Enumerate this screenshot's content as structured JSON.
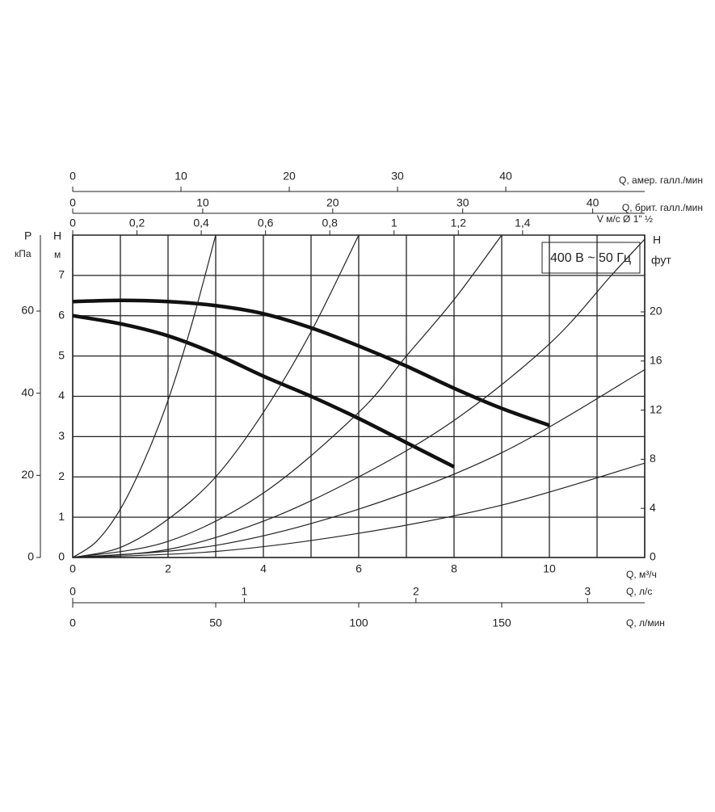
{
  "chart_data": {
    "type": "line",
    "annotation": "400 В ~ 50 Гц",
    "x_label": "Q, м³/ч",
    "y_label": "H",
    "y_unit": "м",
    "y2_label": "H",
    "y2_unit": "фут",
    "xlim": [
      0,
      12
    ],
    "xticks": [
      0,
      2,
      4,
      6,
      8,
      10
    ],
    "xgrid": [
      0,
      1,
      2,
      3,
      4,
      5,
      6,
      7,
      8,
      9,
      10,
      11,
      12
    ],
    "ylim": [
      0,
      8
    ],
    "yticks": [
      0,
      1,
      2,
      3,
      4,
      5,
      6,
      7
    ],
    "y2lim": [
      0,
      26.25
    ],
    "y2ticks": [
      0,
      4,
      8,
      12,
      16,
      20
    ],
    "grid": true,
    "extra_y_axes": [
      {
        "label": "P",
        "unit": "кПа",
        "lim": [
          0,
          78.5
        ],
        "ticks": [
          0,
          20,
          40,
          60
        ]
      }
    ],
    "extra_x_axes": [
      {
        "label": "Q, амер. галл./мин",
        "lim": [
          0,
          52.83
        ],
        "ticks": [
          0,
          10,
          20,
          30,
          40
        ]
      },
      {
        "label": "Q, брит. галл./мин",
        "lim": [
          0,
          44
        ],
        "ticks": [
          0,
          10,
          20,
          30,
          40
        ]
      },
      {
        "label": "V м/с Ø 1\" ½",
        "lim": [
          0,
          1.78
        ],
        "ticks": [
          0,
          {
            "value": 0.2,
            "label": "0,2"
          },
          {
            "value": 0.4,
            "label": "0,4"
          },
          {
            "value": 0.6,
            "label": "0,6"
          },
          {
            "value": 0.8,
            "label": "0,8"
          },
          1,
          {
            "value": 1.2,
            "label": "1,2"
          },
          {
            "value": 1.4,
            "label": "1,4"
          }
        ]
      },
      {
        "label": "Q, л/с",
        "lim": [
          0,
          3.333
        ],
        "ticks": [
          0,
          1,
          2,
          3
        ]
      },
      {
        "label": "Q, л/мин",
        "lim": [
          0,
          200
        ],
        "ticks": [
          0,
          50,
          100,
          150
        ]
      }
    ],
    "series": [
      {
        "color": "#111111",
        "style": "thick",
        "x": [
          0,
          1,
          2,
          3,
          4,
          5,
          6,
          7,
          8,
          9,
          10
        ],
        "values": [
          6.35,
          6.38,
          6.35,
          6.25,
          6.05,
          5.7,
          5.25,
          4.75,
          4.2,
          3.7,
          3.28
        ]
      },
      {
        "color": "#111111",
        "style": "thick",
        "x": [
          0,
          1,
          2,
          3,
          4,
          5,
          6,
          7,
          8
        ],
        "values": [
          6.0,
          5.8,
          5.5,
          5.05,
          4.5,
          4.0,
          3.45,
          2.85,
          2.25
        ]
      },
      {
        "color": "#222222",
        "style": "thin",
        "x": [
          0,
          0.5,
          1,
          1.5,
          2,
          2.5,
          3
        ],
        "values": [
          0,
          0.4,
          1.2,
          2.4,
          3.9,
          5.8,
          8
        ]
      },
      {
        "color": "#222222",
        "style": "thin",
        "x": [
          0,
          1,
          2,
          3,
          4,
          5,
          6
        ],
        "values": [
          0,
          0.25,
          0.95,
          2.0,
          3.6,
          5.6,
          8
        ]
      },
      {
        "color": "#222222",
        "style": "thin",
        "x": [
          0,
          2,
          4,
          6,
          7,
          8,
          9
        ],
        "values": [
          0,
          0.4,
          1.6,
          3.6,
          5.0,
          6.4,
          8
        ]
      },
      {
        "color": "#222222",
        "style": "thin",
        "x": [
          0,
          2,
          4,
          6,
          8,
          10,
          11.3,
          12
        ],
        "values": [
          0,
          0.2,
          0.9,
          2.0,
          3.4,
          5.3,
          7,
          7.9
        ]
      },
      {
        "color": "#222222",
        "style": "thin",
        "x": [
          0,
          3,
          6,
          9,
          12
        ],
        "values": [
          0,
          0.3,
          1.2,
          2.6,
          4.66
        ]
      },
      {
        "color": "#222222",
        "style": "thin",
        "x": [
          0,
          3,
          6,
          9,
          12
        ],
        "values": [
          0,
          0.15,
          0.6,
          1.3,
          2.34
        ]
      }
    ]
  }
}
